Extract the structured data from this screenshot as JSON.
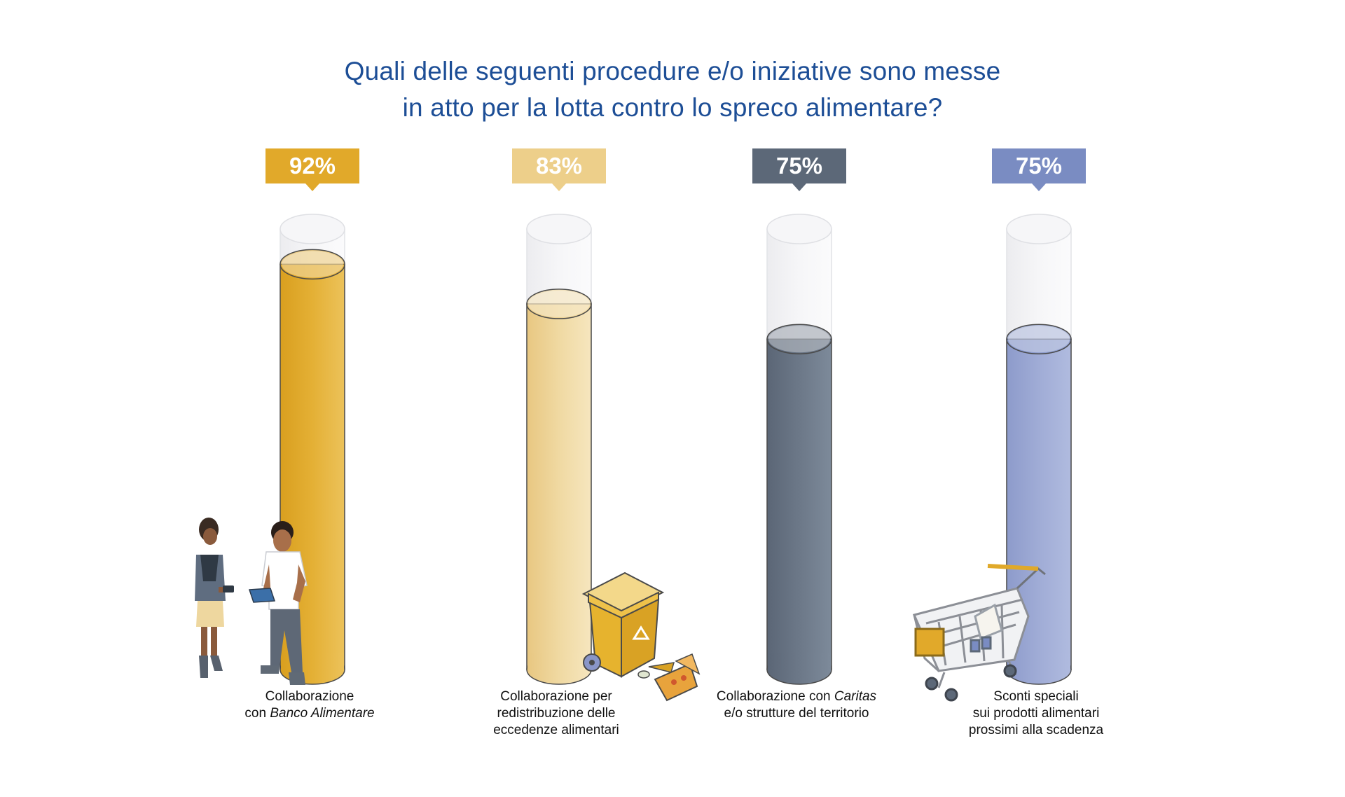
{
  "chart_data": {
    "type": "bar",
    "title_lines": [
      "Quali delle seguenti procedure e/o iniziative sono messe",
      "in atto per la lotta contro lo spreco alimentare?"
    ],
    "values": [
      92,
      83,
      75,
      75
    ],
    "value_labels": [
      "92%",
      "83%",
      "75%",
      "75%"
    ],
    "ylim": [
      0,
      100
    ],
    "categories": [
      {
        "lines": [
          [
            {
              "text": "Collaborazione",
              "italic": false
            }
          ],
          [
            {
              "text": "con ",
              "italic": false
            },
            {
              "text": "Banco Alimentare",
              "italic": true
            }
          ]
        ]
      },
      {
        "lines": [
          [
            {
              "text": "Collaborazione per",
              "italic": false
            }
          ],
          [
            {
              "text": "redistribuzione delle",
              "italic": false
            }
          ],
          [
            {
              "text": "eccedenze alimentari",
              "italic": false
            }
          ]
        ]
      },
      {
        "lines": [
          [
            {
              "text": "Collaborazione con ",
              "italic": false
            },
            {
              "text": "Caritas",
              "italic": true
            }
          ],
          [
            {
              "text": "e/o strutture del territorio",
              "italic": false
            }
          ]
        ]
      },
      {
        "lines": [
          [
            {
              "text": "Sconti speciali",
              "italic": false
            }
          ],
          [
            {
              "text": "sui prodotti alimentari",
              "italic": false
            }
          ],
          [
            {
              "text": "prossimi alla scadenza",
              "italic": false
            }
          ]
        ]
      }
    ],
    "colors": [
      "#e1a92a",
      "#edcf8a",
      "#5c6878",
      "#7a8cc2"
    ],
    "grid": false,
    "legend": "none"
  },
  "illustrations": [
    "people-with-tablet",
    "recycling-bin-with-food",
    "shopping-cart"
  ]
}
